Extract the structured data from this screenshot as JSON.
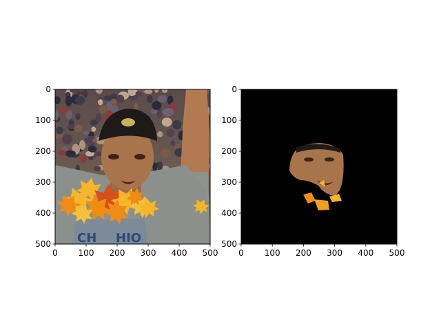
{
  "chart_data": [
    {
      "type": "image",
      "panel": "left",
      "content": "photo of a man in a black cap and grey t-shirt with one arm raised, crowd in the background, autumn maple-leaf overlays across the lower face and chest",
      "xlim": [
        0,
        500
      ],
      "ylim": [
        500,
        0
      ],
      "x_ticks": [
        "0",
        "100",
        "200",
        "300",
        "400",
        "500"
      ],
      "y_ticks": [
        "0",
        "100",
        "200",
        "300",
        "400",
        "500"
      ],
      "grid": false
    },
    {
      "type": "image",
      "panel": "right",
      "content": "segmentation mask output: black background with only the face region and fragments of the leaf overlay visible",
      "xlim": [
        0,
        500
      ],
      "ylim": [
        500,
        0
      ],
      "x_ticks": [
        "0",
        "100",
        "200",
        "300",
        "400",
        "500"
      ],
      "y_ticks": [
        "0",
        "100",
        "200",
        "300",
        "400",
        "500"
      ],
      "grid": false
    }
  ],
  "colors": {
    "axes_frame": "#000000",
    "mask_background": "#000000",
    "shirt": "#8c908c",
    "skin": "#a8744c",
    "cap": "#1e1a1a",
    "leaf_orange": "#f08c14",
    "leaf_yellow": "#f6b52a",
    "leaf_red": "#d6501a"
  }
}
